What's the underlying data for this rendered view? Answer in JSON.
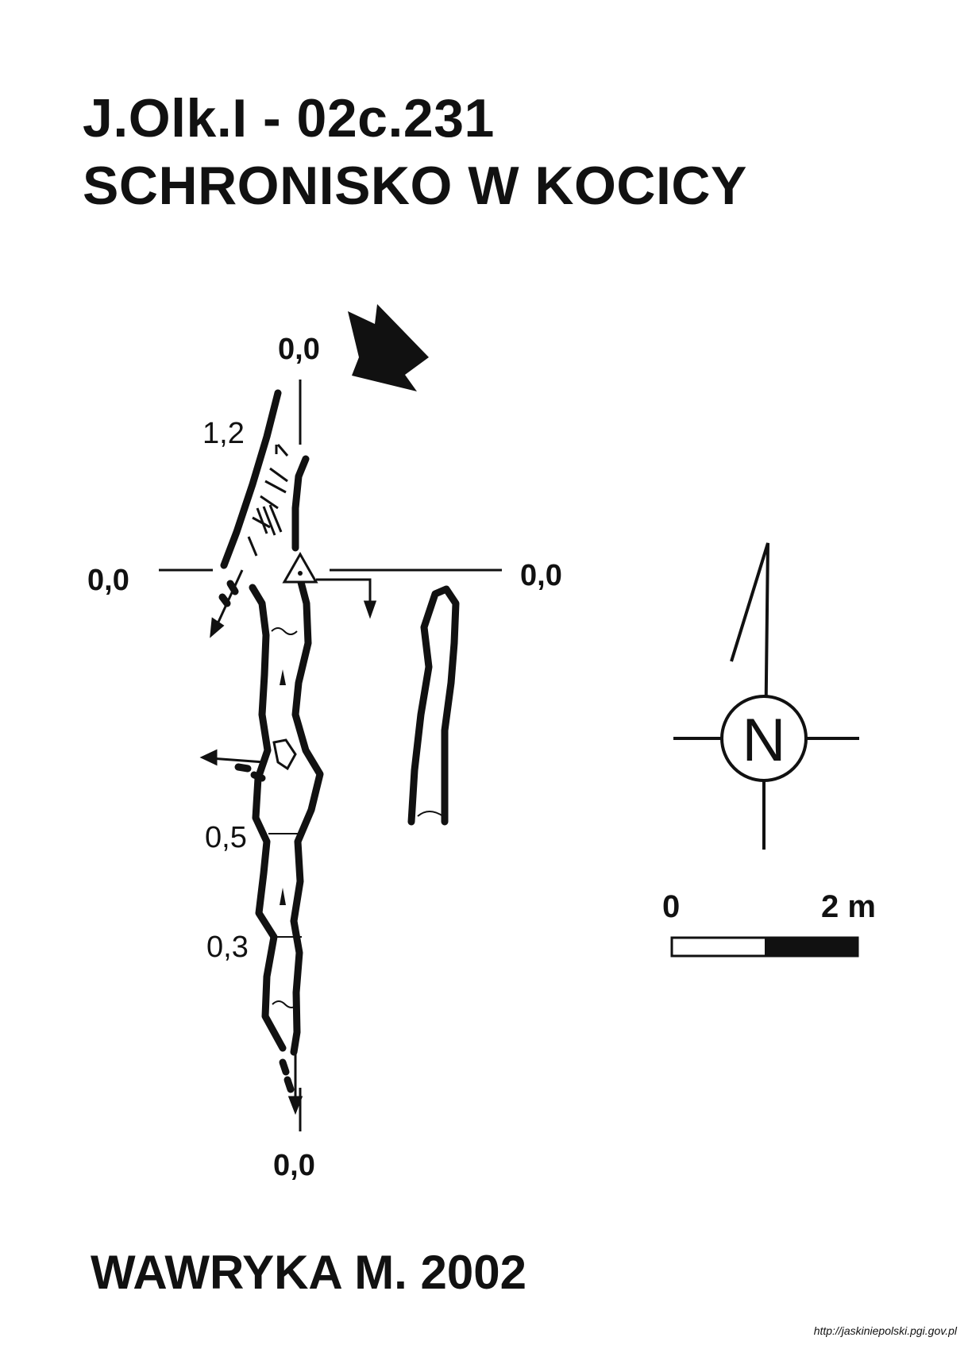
{
  "title": {
    "code": "J.Olk.I - 02c.231",
    "name": "SCHRONISKO W KOCICY"
  },
  "plan_labels": {
    "top_level": "0,0",
    "left_level": "0,0",
    "right_level": "0,0",
    "bottom_level": "0,0",
    "depth_upper": "1,2",
    "depth_mid": "0,5",
    "depth_low": "0,3"
  },
  "compass": {
    "letter": "N"
  },
  "scale_bar": {
    "start_label": "0",
    "end_label": "2 m"
  },
  "author": "WAWRYKA M. 2002",
  "source_url": "http://jaskiniepolski.pgi.gov.pl",
  "colors": {
    "ink": "#111111",
    "paper": "#ffffff"
  }
}
